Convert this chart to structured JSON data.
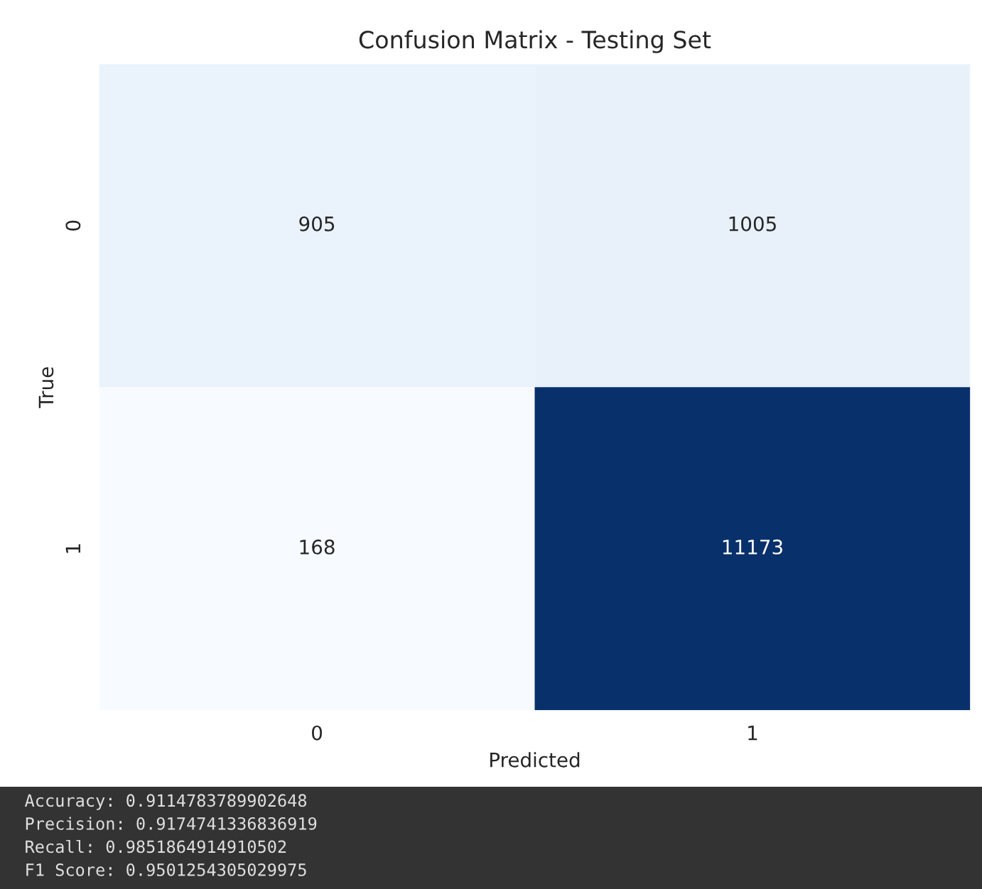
{
  "chart_data": {
    "type": "heatmap",
    "title": "Confusion Matrix - Testing Set",
    "xlabel": "Predicted",
    "ylabel": "True",
    "categories": [
      "0",
      "1"
    ],
    "y_categories": [
      "0",
      "1"
    ],
    "cells": [
      [
        905,
        1005
      ],
      [
        168,
        11173
      ]
    ],
    "data_labels": true,
    "annotations": [
      "Accuracy: 0.9114783789902648",
      "Precision: 0.9174741336836919",
      "Recall: 0.9851864914910502",
      "F1 Score: 0.9501254305029975"
    ]
  }
}
